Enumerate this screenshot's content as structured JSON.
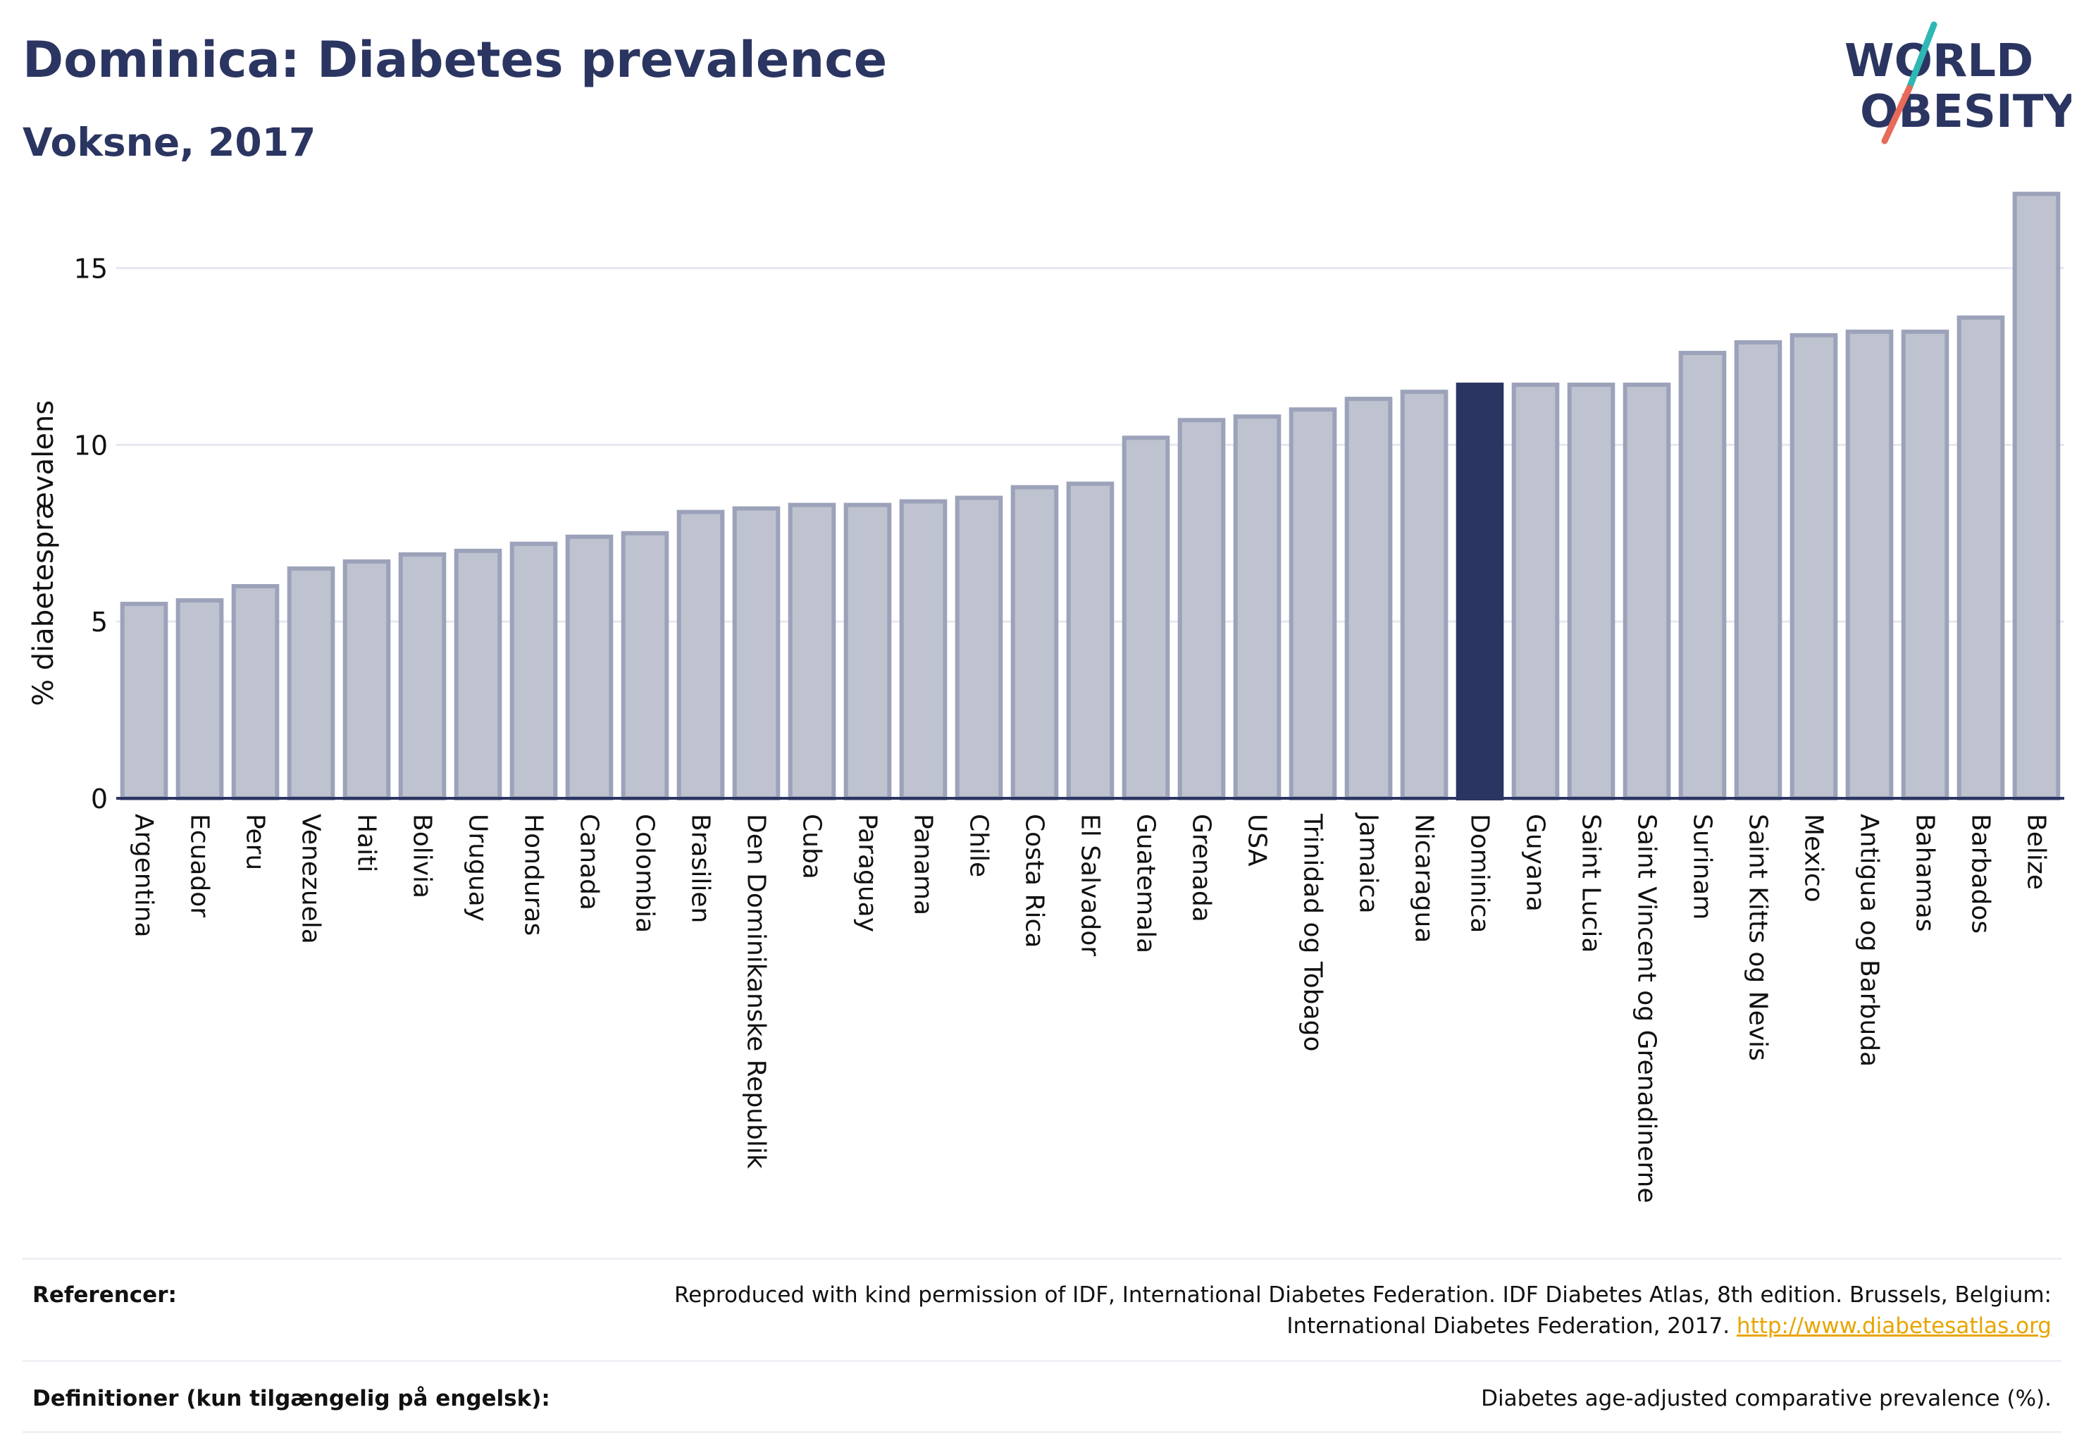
{
  "header": {
    "title": "Dominica: Diabetes prevalence",
    "subtitle": "Voksne, 2017"
  },
  "logo": {
    "line1": "WORLD",
    "line2": "OBESITY",
    "name": "world-obesity-logo"
  },
  "chart_data": {
    "type": "bar",
    "title": "Dominica: Diabetes prevalence",
    "subtitle": "Voksne, 2017",
    "xlabel": "",
    "ylabel": "% diabetesprævalens",
    "ylim": [
      0,
      18
    ],
    "yticks": [
      0,
      5,
      10,
      15
    ],
    "grid": true,
    "highlight": "Dominica",
    "colors": {
      "bar_fill": "#bfc3cf",
      "bar_stroke": "#9ca2b9",
      "highlight": "#2b3561",
      "grid": "#e6e8ef"
    },
    "categories": [
      "Argentina",
      "Ecuador",
      "Peru",
      "Venezuela",
      "Haiti",
      "Bolivia",
      "Uruguay",
      "Honduras",
      "Canada",
      "Colombia",
      "Brasilien",
      "Den Dominikanske Republik",
      "Cuba",
      "Paraguay",
      "Panama",
      "Chile",
      "Costa Rica",
      "El Salvador",
      "Guatemala",
      "Grenada",
      "USA",
      "Trinidad og Tobago",
      "Jamaica",
      "Nicaragua",
      "Dominica",
      "Guyana",
      "Saint Lucia",
      "Saint Vincent og Grenadinerne",
      "Surinam",
      "Saint Kitts og Nevis",
      "Mexico",
      "Antigua og Barbuda",
      "Bahamas",
      "Barbados",
      "Belize"
    ],
    "values": [
      5.5,
      5.6,
      6.0,
      6.5,
      6.7,
      6.9,
      7.0,
      7.2,
      7.4,
      7.5,
      8.1,
      8.2,
      8.3,
      8.3,
      8.4,
      8.5,
      8.8,
      8.9,
      10.2,
      10.7,
      10.8,
      11.0,
      11.3,
      11.5,
      11.7,
      11.7,
      11.7,
      11.7,
      12.6,
      12.9,
      13.1,
      13.2,
      13.2,
      13.6,
      17.1
    ]
  },
  "footer": {
    "references_label": "Referencer:",
    "references_text": "Reproduced with kind permission of IDF, International Diabetes Federation. IDF Diabetes Atlas, 8th edition. Brussels, Belgium: International Diabetes Federation, 2017.",
    "references_link": "http://www.diabetesatlas.org",
    "definitions_label": "Definitioner (kun tilgængelig på engelsk):",
    "definitions_text": "Diabetes age-adjusted comparative prevalence (%)."
  }
}
